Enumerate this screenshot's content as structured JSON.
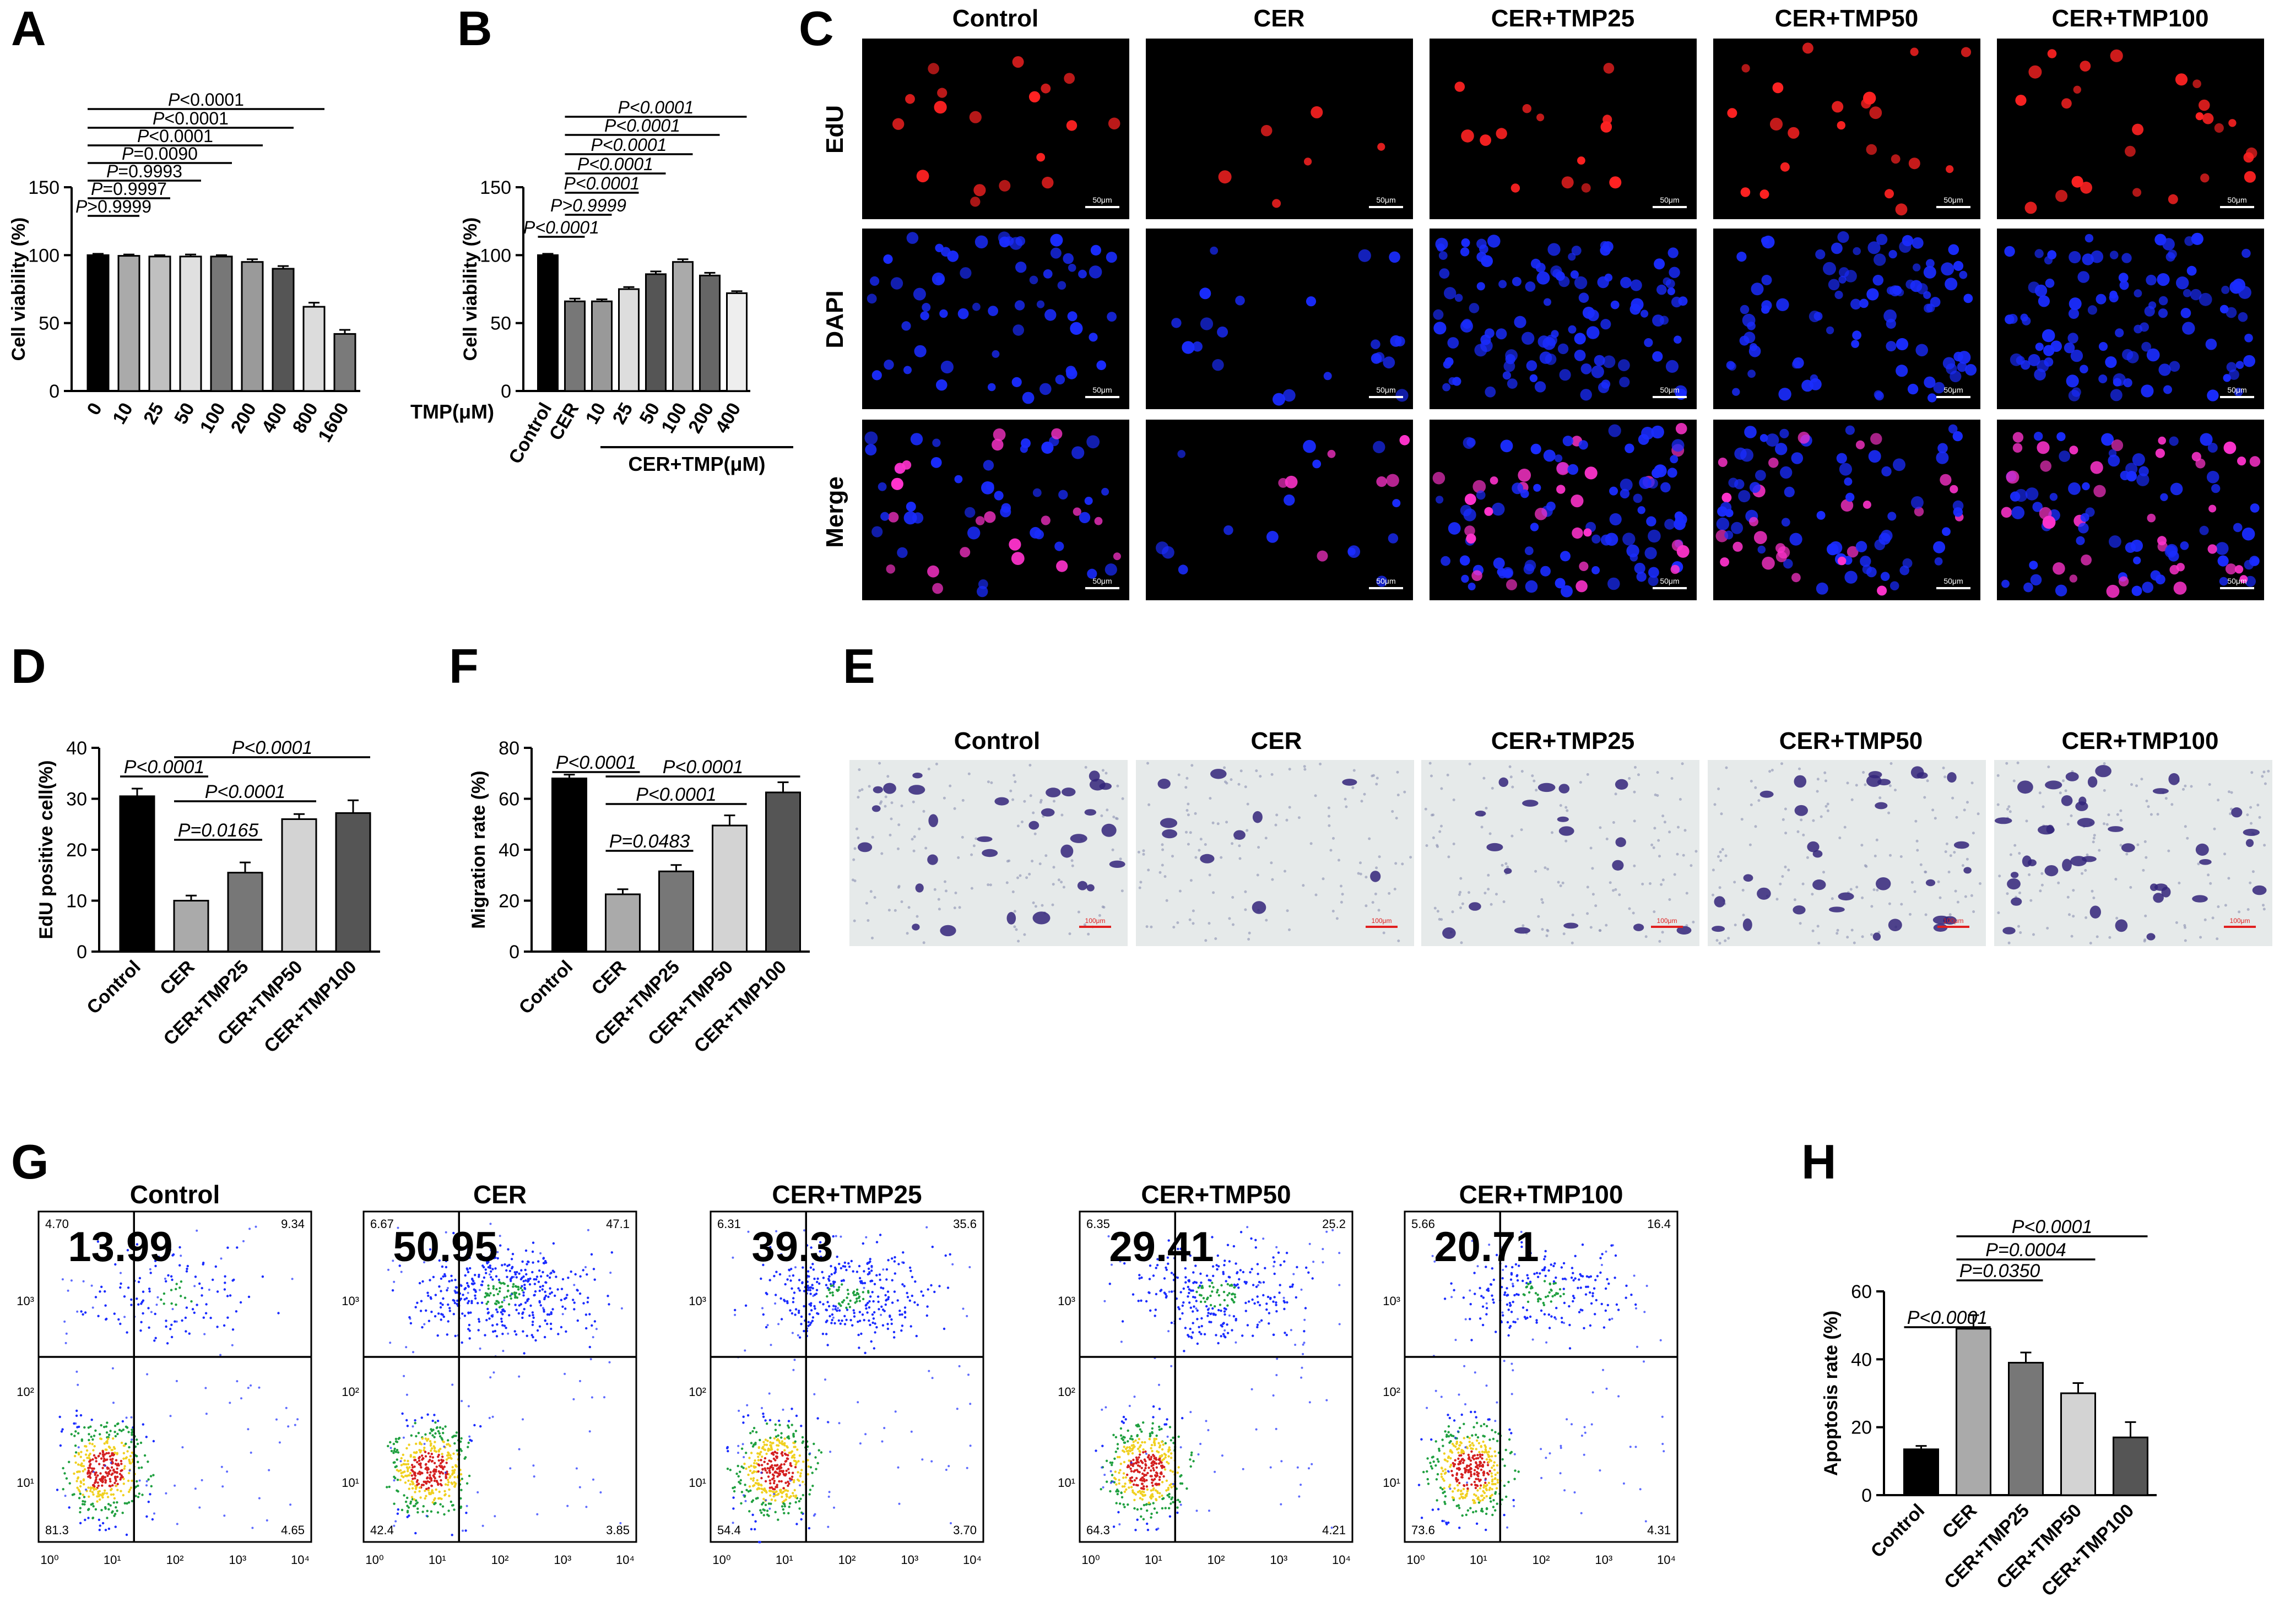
{
  "figure": {
    "panel_letters": [
      "A",
      "B",
      "C",
      "D",
      "F",
      "E",
      "G",
      "H"
    ],
    "micro_columns": [
      "Control",
      "CER",
      "CER+TMP25",
      "CER+TMP50",
      "CER+TMP100"
    ],
    "micro_rows": [
      "EdU",
      "DAPI",
      "Merge"
    ],
    "scale_bar_label_C": "50μm",
    "scale_bar_label_E": "100μm",
    "colors": {
      "black": "#000000",
      "dark": "#4a4a4a",
      "mid": "#7f7f7f",
      "light": "#c8c8c8",
      "pale": "#e8e8e8",
      "edu": "#ff2a2a",
      "dapi": "#1428ff",
      "merge": "#ff33cc",
      "stain": "#3a2a8a"
    }
  },
  "chart_data": [
    {
      "id": "A",
      "type": "bar",
      "title": "",
      "categories": [
        "0",
        "10",
        "25",
        "50",
        "100",
        "200",
        "400",
        "800",
        "1600"
      ],
      "values": [
        100,
        99.5,
        99,
        99,
        99,
        95,
        90,
        62,
        42
      ],
      "errors": [
        1,
        1,
        1,
        1.5,
        1,
        2,
        2,
        3,
        3
      ],
      "ylabel": "Cell viability (%)",
      "xlabel": "TMP(μM)",
      "ylim": [
        0,
        150
      ],
      "yticks": [
        "0",
        "50",
        "100",
        "150"
      ],
      "fills": [
        "#000000",
        "#aaaaaa",
        "#c0c0c0",
        "#e0e0e0",
        "#777777",
        "#9a9a9a",
        "#555555",
        "#dcdcdc",
        "#7a7a7a"
      ],
      "brackets": [
        {
          "from": 0,
          "to": 1,
          "label": "P>0.9999"
        },
        {
          "from": 0,
          "to": 2,
          "label": "P=0.9997"
        },
        {
          "from": 0,
          "to": 3,
          "label": "P=0.9993"
        },
        {
          "from": 0,
          "to": 4,
          "label": "P=0.0090"
        },
        {
          "from": 0,
          "to": 5,
          "label": "P<0.0001"
        },
        {
          "from": 0,
          "to": 6,
          "label": "P<0.0001"
        },
        {
          "from": 0,
          "to": 7,
          "label": "P<0.0001"
        }
      ]
    },
    {
      "id": "B",
      "type": "bar",
      "categories": [
        "Control",
        "CER",
        "10",
        "25",
        "50",
        "100",
        "200",
        "400"
      ],
      "values": [
        100,
        66,
        66,
        75,
        86,
        95,
        85,
        72
      ],
      "errors": [
        1,
        2,
        1.5,
        1.5,
        2,
        2,
        2,
        1.5
      ],
      "ylabel": "Cell viability (%)",
      "xlabel": "CER+TMP(μM)",
      "ylim": [
        0,
        150
      ],
      "yticks": [
        "0",
        "50",
        "100",
        "150"
      ],
      "fills": [
        "#000000",
        "#777777",
        "#999999",
        "#dddddd",
        "#555555",
        "#aaaaaa",
        "#666666",
        "#eeeeee"
      ],
      "brackets": [
        {
          "from": 0,
          "to": 1,
          "label": "P<0.0001"
        },
        {
          "from": 1,
          "to": 2,
          "label": "P>0.9999"
        },
        {
          "from": 1,
          "to": 3,
          "label": "P<0.0001"
        },
        {
          "from": 1,
          "to": 4,
          "label": "P<0.0001"
        },
        {
          "from": 1,
          "to": 5,
          "label": "P<0.0001"
        },
        {
          "from": 1,
          "to": 6,
          "label": "P<0.0001"
        },
        {
          "from": 1,
          "to": 7,
          "label": "P<0.0001"
        }
      ]
    },
    {
      "id": "D",
      "type": "bar",
      "categories": [
        "Control",
        "CER",
        "CER+TMP25",
        "CER+TMP50",
        "CER+TMP100"
      ],
      "values": [
        30.5,
        10,
        15.5,
        26,
        27.2
      ],
      "errors": [
        1.5,
        1,
        2,
        1,
        2.5
      ],
      "ylabel": "EdU positive cell(%)",
      "xlabel": "",
      "ylim": [
        0,
        40
      ],
      "yticks": [
        "0",
        "10",
        "20",
        "30",
        "40"
      ],
      "fills": [
        "#000000",
        "#aaaaaa",
        "#777777",
        "#d3d3d3",
        "#555555"
      ],
      "brackets": [
        {
          "from": 0,
          "to": 1,
          "label": "P<0.0001"
        },
        {
          "from": 1,
          "to": 2,
          "label": "P=0.0165"
        },
        {
          "from": 1,
          "to": 3,
          "label": "P<0.0001"
        },
        {
          "from": 1,
          "to": 4,
          "label": "P<0.0001"
        }
      ]
    },
    {
      "id": "F",
      "type": "bar",
      "categories": [
        "Control",
        "CER",
        "CER+TMP25",
        "CER+TMP50",
        "CER+TMP100"
      ],
      "values": [
        68,
        22.5,
        31.5,
        49.5,
        62.5
      ],
      "errors": [
        1.5,
        2,
        2.5,
        4,
        4
      ],
      "ylabel": "Migration rate (%)",
      "xlabel": "",
      "ylim": [
        0,
        80
      ],
      "yticks": [
        "0",
        "20",
        "40",
        "60",
        "80"
      ],
      "fills": [
        "#000000",
        "#aaaaaa",
        "#777777",
        "#d3d3d3",
        "#555555"
      ],
      "brackets": [
        {
          "from": 0,
          "to": 1,
          "label": "P<0.0001"
        },
        {
          "from": 1,
          "to": 2,
          "label": "P=0.0483"
        },
        {
          "from": 1,
          "to": 3,
          "label": "P<0.0001"
        },
        {
          "from": 1,
          "to": 4,
          "label": "P<0.0001"
        }
      ]
    },
    {
      "id": "H",
      "type": "bar",
      "categories": [
        "Control",
        "CER",
        "CER+TMP25",
        "CER+TMP50",
        "CER+TMP100"
      ],
      "values": [
        13.5,
        49,
        39,
        30,
        17
      ],
      "errors": [
        1,
        4,
        3,
        3,
        4.5
      ],
      "ylabel": "Apoptosis rate (%)",
      "xlabel": "",
      "ylim": [
        0,
        60
      ],
      "yticks": [
        "0",
        "20",
        "40",
        "60"
      ],
      "fills": [
        "#000000",
        "#aaaaaa",
        "#777777",
        "#d3d3d3",
        "#555555"
      ],
      "brackets": [
        {
          "from": 0,
          "to": 1,
          "label": "P<0.0001"
        },
        {
          "from": 1,
          "to": 2,
          "label": "P=0.0350"
        },
        {
          "from": 1,
          "to": 3,
          "label": "P=0.0004"
        },
        {
          "from": 1,
          "to": 4,
          "label": "P<0.0001"
        }
      ]
    },
    {
      "id": "G",
      "type": "scatter",
      "subtype": "flow-cytometry",
      "titles": [
        "Control",
        "CER",
        "CER+TMP25",
        "CER+TMP50",
        "CER+TMP100"
      ],
      "apoptosis_totals": [
        "13.99",
        "50.95",
        "39.3",
        "29.41",
        "20.71"
      ],
      "quadrants": [
        {
          "ul": "4.70",
          "ur": "9.34",
          "ll": "81.3",
          "lr": "4.65"
        },
        {
          "ul": "6.67",
          "ur": "47.1",
          "ll": "42.4",
          "lr": "3.85"
        },
        {
          "ul": "6.31",
          "ur": "35.6",
          "ll": "54.4",
          "lr": "3.70"
        },
        {
          "ul": "6.35",
          "ur": "25.2",
          "ll": "64.3",
          "lr": "4.21"
        },
        {
          "ul": "5.66",
          "ur": "16.4",
          "ll": "73.6",
          "lr": "4.31"
        }
      ],
      "x_ticks": [
        "10⁰",
        "10¹",
        "10²",
        "10³",
        "10⁴"
      ],
      "y_ticks": [
        "10¹",
        "10²",
        "10³"
      ]
    }
  ]
}
